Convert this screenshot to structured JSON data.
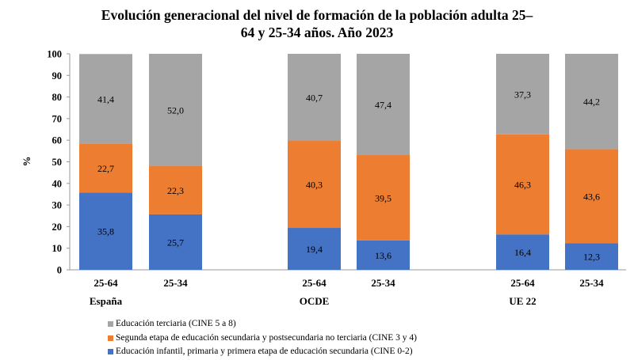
{
  "chart_data": {
    "type": "bar",
    "stacked": true,
    "title": "Evolución generacional del nivel de formación de la población adulta 25–64 y 25-34 años. Año 2023",
    "title_lines": [
      "Evolución generacional del nivel de formación de la población adulta 25–",
      "64  y 25-34 años. Año 2023"
    ],
    "ylabel": "%",
    "ylim": [
      0,
      100
    ],
    "yticks": [
      0,
      10,
      20,
      30,
      40,
      50,
      60,
      70,
      80,
      90,
      100
    ],
    "grid": false,
    "legend_position": "bottom",
    "groups": [
      "España",
      "OCDE",
      "UE 22"
    ],
    "categories": [
      "25-64",
      "25-34",
      "25-64",
      "25-34",
      "25-64",
      "25-34"
    ],
    "series": [
      {
        "name": "Educación infantil, primaria y primera etapa de educación secundaria (CINE 0-2)",
        "color": "#4472c4",
        "values": [
          35.8,
          25.7,
          19.4,
          13.6,
          16.4,
          12.3
        ],
        "labels": [
          "35,8",
          "25,7",
          "19,4",
          "13,6",
          "16,4",
          "12,3"
        ]
      },
      {
        "name": "Segunda etapa de educación secundaria y postsecundaria no terciaria (CINE 3 y 4)",
        "color": "#ed7d31",
        "values": [
          22.7,
          22.3,
          40.3,
          39.5,
          46.3,
          43.6
        ],
        "labels": [
          "22,7",
          "22,3",
          "40,3",
          "39,5",
          "46,3",
          "43,6"
        ]
      },
      {
        "name": "Educación terciaria (CINE 5 a 8)",
        "color": "#a5a5a5",
        "values": [
          41.4,
          52.0,
          40.7,
          47.4,
          37.3,
          44.2
        ],
        "labels": [
          "41,4",
          "52,0",
          "40,7",
          "47,4",
          "37,3",
          "44,2"
        ]
      }
    ],
    "legend_order": [
      2,
      1,
      0
    ]
  }
}
